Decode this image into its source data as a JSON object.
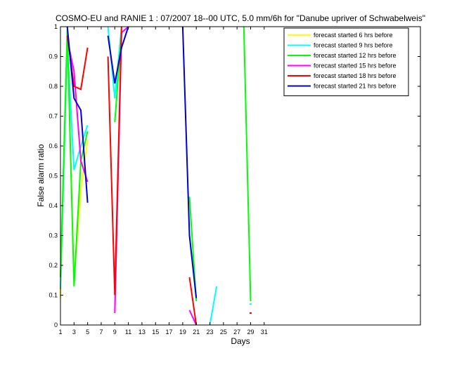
{
  "chart_data": {
    "type": "line",
    "title": "COSMO-EU and RANIE 1 : 07/2007 18--00 UTC, 5.0 mm/6h for \"Danube upriver of Schwabelweis\"",
    "xlabel": "Days",
    "ylabel": "False alarm ratio",
    "xlim": [
      1,
      54
    ],
    "ylim": [
      0,
      1
    ],
    "xticks": [
      1,
      3,
      5,
      7,
      9,
      11,
      13,
      15,
      17,
      19,
      21,
      23,
      25,
      27,
      29,
      31
    ],
    "yticks": [
      0,
      0.1,
      0.2,
      0.3,
      0.4,
      0.5,
      0.6,
      0.7,
      0.8,
      0.9,
      1
    ],
    "legend_position": "top-right",
    "series": [
      {
        "name": "forecast started 6 hrs before",
        "color": "#ffff00",
        "points": [
          [
            1,
            0.09
          ],
          [
            2,
            0.97
          ],
          [
            3,
            0.15
          ],
          [
            4,
            0.45
          ],
          [
            5,
            0.62
          ]
        ]
      },
      {
        "name": "forecast started 9 hrs before",
        "color": "#00ffff",
        "points": [
          [
            1,
            0.12
          ],
          [
            2,
            0.95
          ],
          [
            3,
            0.52
          ],
          [
            4,
            0.6
          ],
          [
            5,
            0.67
          ],
          [
            8,
            1.0
          ],
          [
            9,
            0.76
          ],
          [
            10,
            1.0
          ],
          [
            20,
            0.3
          ],
          [
            21,
            0.09
          ],
          [
            23,
            0.0
          ],
          [
            24,
            0.13
          ],
          [
            29,
            0.07
          ]
        ]
      },
      {
        "name": "forecast started 12 hrs before",
        "color": "#00ff00",
        "points": [
          [
            1,
            0.16
          ],
          [
            2,
            0.99
          ],
          [
            3,
            0.13
          ],
          [
            4,
            0.55
          ],
          [
            5,
            0.65
          ],
          [
            9,
            0.68
          ],
          [
            10,
            0.98
          ],
          [
            20,
            0.43
          ],
          [
            21,
            0.08
          ],
          [
            28,
            1.0
          ],
          [
            29,
            0.08
          ]
        ]
      },
      {
        "name": "forecast started 15 hrs before",
        "color": "#ff00ff",
        "points": [
          [
            2,
            0.96
          ],
          [
            3,
            0.85
          ],
          [
            4,
            0.55
          ],
          [
            5,
            0.48
          ],
          [
            9,
            0.04
          ],
          [
            10,
            0.98
          ],
          [
            11,
            1.0
          ],
          [
            20,
            0.05
          ],
          [
            21,
            0.0
          ]
        ]
      },
      {
        "name": "forecast started 18 hrs before",
        "color": "#ff0000",
        "points": [
          [
            2,
            0.97
          ],
          [
            3,
            0.8
          ],
          [
            4,
            0.79
          ],
          [
            5,
            0.93
          ],
          [
            8,
            0.9
          ],
          [
            9,
            0.1
          ],
          [
            10,
            1.0
          ],
          [
            20,
            0.16
          ],
          [
            21,
            0.0
          ],
          [
            29,
            0.04
          ]
        ]
      },
      {
        "name": "forecast started 21 hrs before",
        "color": "#0000cc",
        "points": [
          [
            2,
            1.0
          ],
          [
            3,
            0.76
          ],
          [
            4,
            0.72
          ],
          [
            5,
            0.41
          ],
          [
            8,
            0.97
          ],
          [
            9,
            0.81
          ],
          [
            10,
            0.93
          ],
          [
            11,
            1.0
          ],
          [
            19,
            1.0
          ],
          [
            20,
            0.3
          ],
          [
            21,
            0.09
          ]
        ]
      }
    ]
  }
}
